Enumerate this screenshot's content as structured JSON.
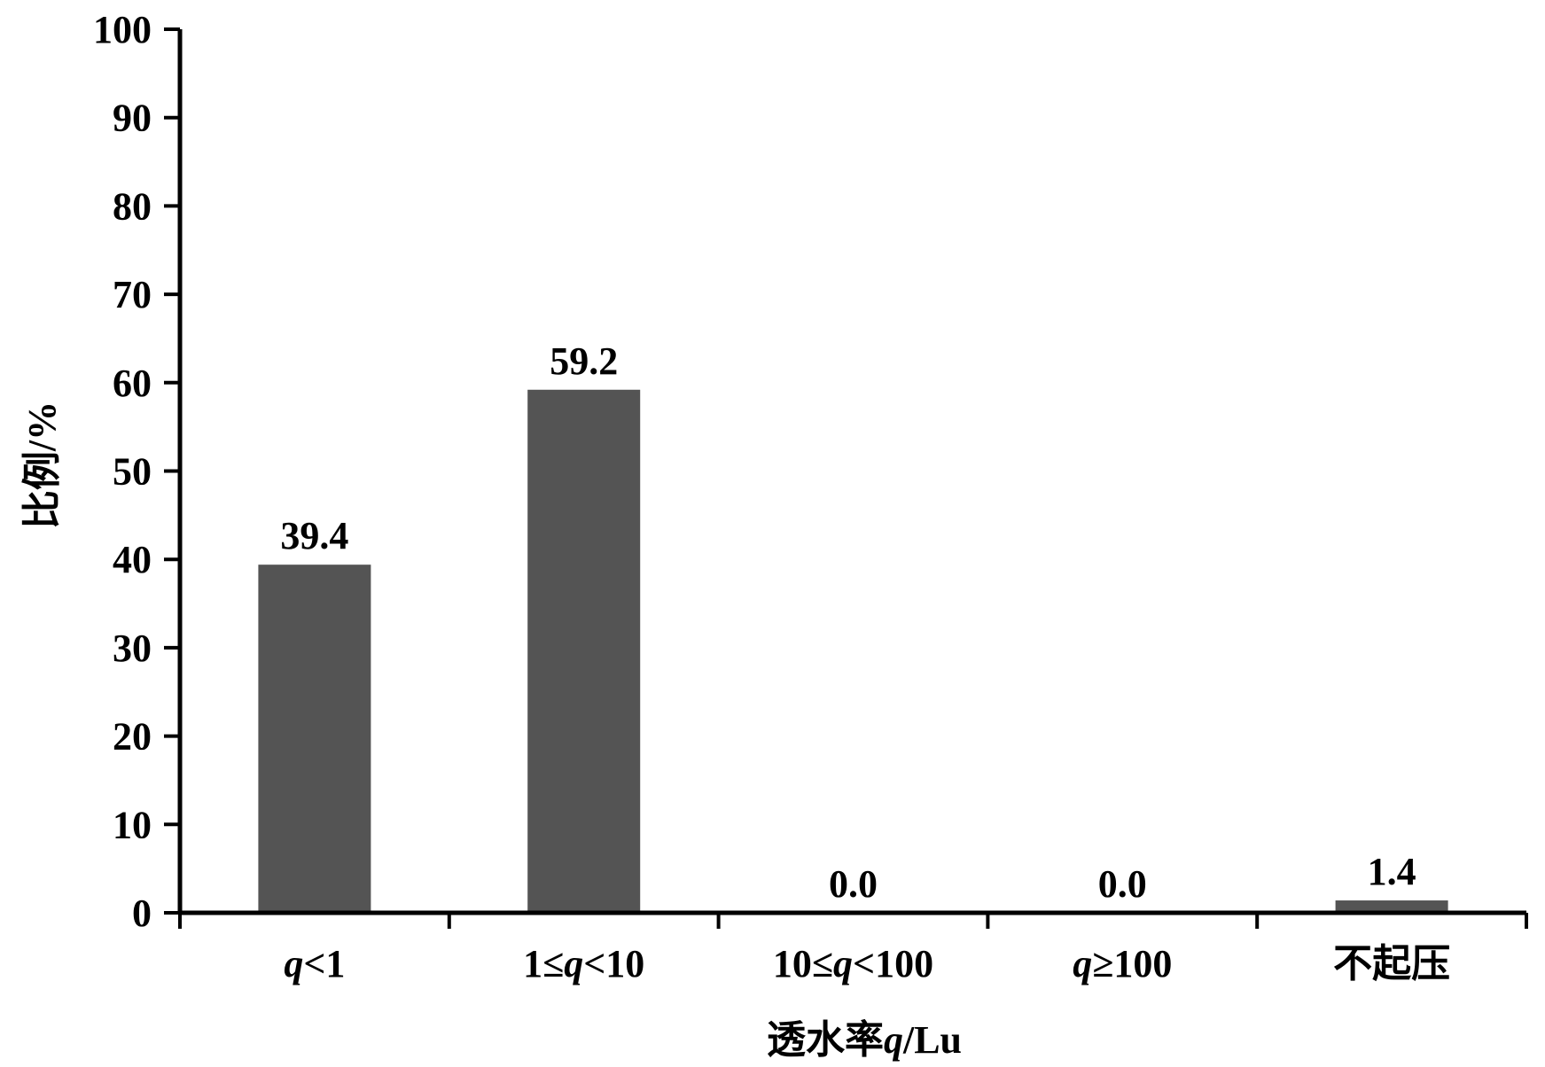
{
  "chart_data": {
    "type": "bar",
    "categories": [
      {
        "parts": [
          {
            "t": "q",
            "i": true
          },
          {
            "t": "<1",
            "i": false
          }
        ]
      },
      {
        "parts": [
          {
            "t": "1≤",
            "i": false
          },
          {
            "t": "q",
            "i": true
          },
          {
            "t": "<10",
            "i": false
          }
        ]
      },
      {
        "parts": [
          {
            "t": "10≤",
            "i": false
          },
          {
            "t": "q",
            "i": true
          },
          {
            "t": "<100",
            "i": false
          }
        ]
      },
      {
        "parts": [
          {
            "t": "q",
            "i": true
          },
          {
            "t": "≥100",
            "i": false
          }
        ]
      },
      {
        "parts": [
          {
            "t": "不起压",
            "i": false
          }
        ]
      }
    ],
    "values": [
      39.4,
      59.2,
      0.0,
      0.0,
      1.4
    ],
    "data_labels": [
      "39.4",
      "59.2",
      "0.0",
      "0.0",
      "1.4"
    ],
    "xlabel": {
      "parts": [
        {
          "t": "透水率",
          "i": false
        },
        {
          "t": "q",
          "i": true
        },
        {
          "t": "/Lu",
          "i": false
        }
      ]
    },
    "ylabel": "比例/%",
    "ylim": [
      0,
      100
    ],
    "yticks": [
      0,
      10,
      20,
      30,
      40,
      50,
      60,
      70,
      80,
      90,
      100
    ],
    "grid": false,
    "legend": "none",
    "bar_color": "#545454",
    "axis_color": "#000000"
  }
}
